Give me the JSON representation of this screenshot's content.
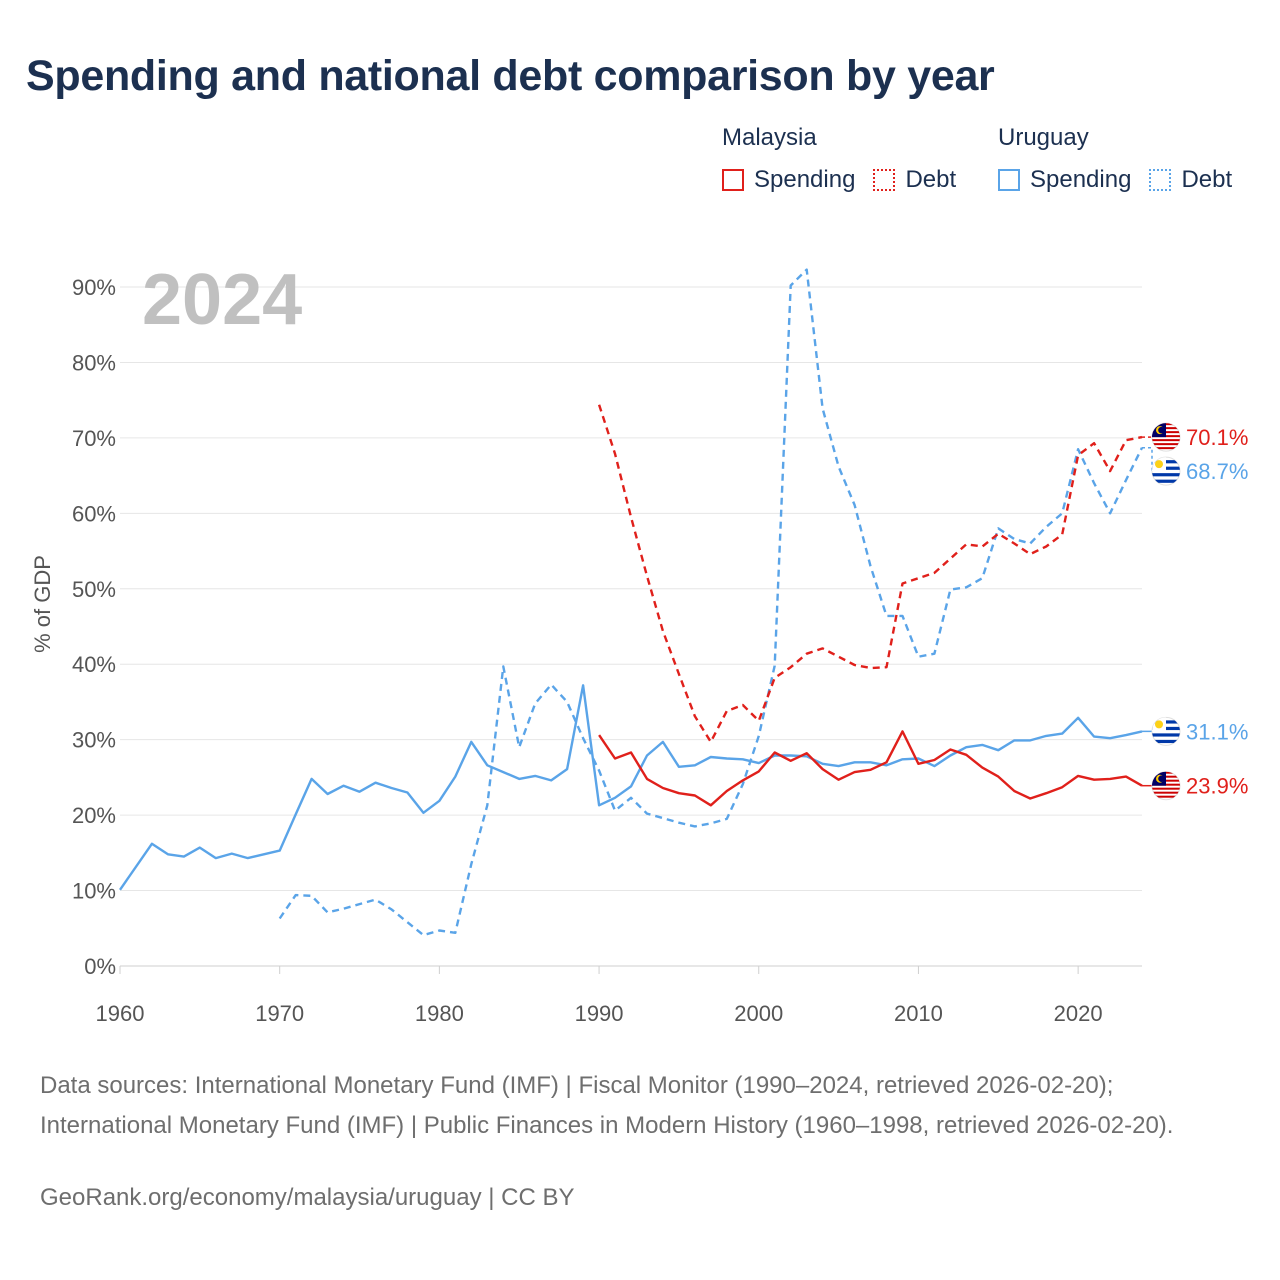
{
  "title": "Spending and national debt comparison by year",
  "legend": {
    "malaysia": {
      "label": "Malaysia",
      "spending": "Spending",
      "debt": "Debt",
      "color": "#e0201b"
    },
    "uruguay": {
      "label": "Uruguay",
      "spending": "Spending",
      "debt": "Debt",
      "color": "#5aa4e8"
    }
  },
  "footer": {
    "sources": "Data sources: International Monetary Fund (IMF) | Fiscal Monitor (1990–2024, retrieved 2026-02-20); International Monetary Fund (IMF) | Public Finances in Modern History (1960–1998, retrieved 2026-02-20).",
    "credit": "GeoRank.org/economy/malaysia/uruguay | CC BY"
  },
  "chart_data": {
    "type": "line",
    "year_label": "2024",
    "ylabel": "% of GDP",
    "xlim": [
      1960,
      2024
    ],
    "ylim": [
      0,
      90
    ],
    "x_ticks": [
      1960,
      1970,
      1980,
      1990,
      2000,
      2010,
      2020
    ],
    "y_ticks": [
      0,
      10,
      20,
      30,
      40,
      50,
      60,
      70,
      80,
      90
    ],
    "y_tick_labels": [
      "0%",
      "10%",
      "20%",
      "30%",
      "40%",
      "50%",
      "60%",
      "70%",
      "80%",
      "90%"
    ],
    "series": [
      {
        "name": "Uruguay Spending",
        "country": "uruguay",
        "style": "solid",
        "color": "#5aa4e8",
        "end_label": "31.1%",
        "points": [
          [
            1960,
            10.1
          ],
          [
            1962,
            16.2
          ],
          [
            1963,
            14.8
          ],
          [
            1964,
            14.5
          ],
          [
            1965,
            15.7
          ],
          [
            1966,
            14.3
          ],
          [
            1967,
            14.9
          ],
          [
            1968,
            14.3
          ],
          [
            1970,
            15.3
          ],
          [
            1971,
            20.1
          ],
          [
            1972,
            24.8
          ],
          [
            1973,
            22.8
          ],
          [
            1974,
            23.9
          ],
          [
            1975,
            23.1
          ],
          [
            1976,
            24.3
          ],
          [
            1977,
            23.6
          ],
          [
            1978,
            23.0
          ],
          [
            1979,
            20.3
          ],
          [
            1980,
            21.9
          ],
          [
            1981,
            25.1
          ],
          [
            1982,
            29.7
          ],
          [
            1983,
            26.6
          ],
          [
            1984,
            25.7
          ],
          [
            1985,
            24.8
          ],
          [
            1986,
            25.2
          ],
          [
            1987,
            24.6
          ],
          [
            1988,
            26.1
          ],
          [
            1989,
            37.2
          ],
          [
            1990,
            21.3
          ],
          [
            1991,
            22.3
          ],
          [
            1992,
            23.8
          ],
          [
            1993,
            27.9
          ],
          [
            1994,
            29.7
          ],
          [
            1995,
            26.4
          ],
          [
            1996,
            26.6
          ],
          [
            1997,
            27.7
          ],
          [
            1998,
            27.5
          ],
          [
            1999,
            27.4
          ],
          [
            2000,
            26.9
          ],
          [
            2001,
            27.9
          ],
          [
            2002,
            27.9
          ],
          [
            2003,
            27.8
          ],
          [
            2004,
            26.8
          ],
          [
            2005,
            26.5
          ],
          [
            2006,
            27.0
          ],
          [
            2007,
            27.0
          ],
          [
            2008,
            26.6
          ],
          [
            2009,
            27.4
          ],
          [
            2010,
            27.5
          ],
          [
            2011,
            26.5
          ],
          [
            2012,
            27.9
          ],
          [
            2013,
            29.0
          ],
          [
            2014,
            29.3
          ],
          [
            2015,
            28.6
          ],
          [
            2016,
            29.9
          ],
          [
            2017,
            29.9
          ],
          [
            2018,
            30.5
          ],
          [
            2019,
            30.8
          ],
          [
            2020,
            32.9
          ],
          [
            2021,
            30.4
          ],
          [
            2022,
            30.2
          ],
          [
            2023,
            30.6
          ],
          [
            2024,
            31.1
          ]
        ]
      },
      {
        "name": "Uruguay Debt",
        "country": "uruguay",
        "style": "dashed",
        "color": "#5aa4e8",
        "end_label": "68.7%",
        "points": [
          [
            1970,
            6.3
          ],
          [
            1971,
            9.4
          ],
          [
            1972,
            9.3
          ],
          [
            1973,
            7.1
          ],
          [
            1974,
            7.6
          ],
          [
            1975,
            8.2
          ],
          [
            1976,
            8.8
          ],
          [
            1977,
            7.5
          ],
          [
            1978,
            5.8
          ],
          [
            1979,
            4.1
          ],
          [
            1980,
            4.7
          ],
          [
            1981,
            4.4
          ],
          [
            1982,
            13.5
          ],
          [
            1983,
            21.3
          ],
          [
            1984,
            39.7
          ],
          [
            1985,
            29.0
          ],
          [
            1986,
            34.8
          ],
          [
            1987,
            37.3
          ],
          [
            1988,
            35.0
          ],
          [
            1989,
            30.2
          ],
          [
            1990,
            25.9
          ],
          [
            1991,
            20.6
          ],
          [
            1992,
            22.3
          ],
          [
            1993,
            20.2
          ],
          [
            1994,
            19.6
          ],
          [
            1995,
            19.0
          ],
          [
            1996,
            18.5
          ],
          [
            1997,
            18.9
          ],
          [
            1998,
            19.5
          ],
          [
            1999,
            24.1
          ],
          [
            2000,
            30.5
          ],
          [
            2001,
            39.8
          ],
          [
            2002,
            90.2
          ],
          [
            2003,
            92.3
          ],
          [
            2004,
            73.9
          ],
          [
            2005,
            66.2
          ],
          [
            2006,
            61.1
          ],
          [
            2007,
            53.0
          ],
          [
            2008,
            46.4
          ],
          [
            2009,
            46.4
          ],
          [
            2010,
            41.0
          ],
          [
            2011,
            41.4
          ],
          [
            2012,
            49.9
          ],
          [
            2013,
            50.2
          ],
          [
            2014,
            51.4
          ],
          [
            2015,
            58.0
          ],
          [
            2016,
            56.6
          ],
          [
            2017,
            56.0
          ],
          [
            2018,
            58.2
          ],
          [
            2019,
            60.0
          ],
          [
            2020,
            68.5
          ],
          [
            2021,
            64.0
          ],
          [
            2022,
            60.0
          ],
          [
            2023,
            64.4
          ],
          [
            2024,
            68.7
          ]
        ]
      },
      {
        "name": "Malaysia Spending",
        "country": "malaysia",
        "style": "solid",
        "color": "#e0201b",
        "end_label": "23.9%",
        "points": [
          [
            1990,
            30.6
          ],
          [
            1991,
            27.5
          ],
          [
            1992,
            28.3
          ],
          [
            1993,
            24.8
          ],
          [
            1994,
            23.6
          ],
          [
            1995,
            22.9
          ],
          [
            1996,
            22.6
          ],
          [
            1997,
            21.3
          ],
          [
            1998,
            23.2
          ],
          [
            1999,
            24.6
          ],
          [
            2000,
            25.8
          ],
          [
            2001,
            28.3
          ],
          [
            2002,
            27.2
          ],
          [
            2003,
            28.2
          ],
          [
            2004,
            26.1
          ],
          [
            2005,
            24.7
          ],
          [
            2006,
            25.7
          ],
          [
            2007,
            26.0
          ],
          [
            2008,
            27.0
          ],
          [
            2009,
            31.1
          ],
          [
            2010,
            26.8
          ],
          [
            2011,
            27.3
          ],
          [
            2012,
            28.7
          ],
          [
            2013,
            28.0
          ],
          [
            2014,
            26.3
          ],
          [
            2015,
            25.1
          ],
          [
            2016,
            23.2
          ],
          [
            2017,
            22.2
          ],
          [
            2018,
            22.9
          ],
          [
            2019,
            23.7
          ],
          [
            2020,
            25.2
          ],
          [
            2021,
            24.7
          ],
          [
            2022,
            24.8
          ],
          [
            2023,
            25.1
          ],
          [
            2024,
            23.9
          ]
        ]
      },
      {
        "name": "Malaysia Debt",
        "country": "malaysia",
        "style": "dashed",
        "color": "#e0201b",
        "end_label": "70.1%",
        "points": [
          [
            1990,
            74.4
          ],
          [
            1991,
            67.9
          ],
          [
            1992,
            59.5
          ],
          [
            1993,
            51.7
          ],
          [
            1994,
            44.4
          ],
          [
            1995,
            38.7
          ],
          [
            1996,
            33.1
          ],
          [
            1997,
            29.7
          ],
          [
            1998,
            33.8
          ],
          [
            1999,
            34.6
          ],
          [
            2000,
            32.5
          ],
          [
            2001,
            38.2
          ],
          [
            2002,
            39.6
          ],
          [
            2003,
            41.4
          ],
          [
            2004,
            42.1
          ],
          [
            2005,
            41.0
          ],
          [
            2006,
            39.9
          ],
          [
            2007,
            39.5
          ],
          [
            2008,
            39.6
          ],
          [
            2009,
            50.7
          ],
          [
            2010,
            51.4
          ],
          [
            2011,
            52.1
          ],
          [
            2012,
            54.0
          ],
          [
            2013,
            55.9
          ],
          [
            2014,
            55.6
          ],
          [
            2015,
            57.3
          ],
          [
            2016,
            56.0
          ],
          [
            2017,
            54.6
          ],
          [
            2018,
            55.6
          ],
          [
            2019,
            57.2
          ],
          [
            2020,
            67.7
          ],
          [
            2021,
            69.3
          ],
          [
            2022,
            65.6
          ],
          [
            2023,
            69.7
          ],
          [
            2024,
            70.1
          ]
        ]
      }
    ]
  }
}
